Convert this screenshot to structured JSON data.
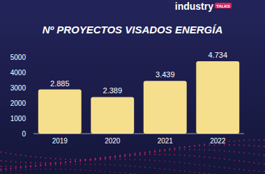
{
  "chart_data": {
    "type": "bar",
    "title": "Nº PROYECTOS VISADOS ENERGÍA",
    "categories": [
      "2019",
      "2020",
      "2021",
      "2022"
    ],
    "values": [
      2885,
      2389,
      3439,
      4734
    ],
    "value_labels": [
      "2.885",
      "2.389",
      "3.439",
      "4.734"
    ],
    "data_labels": true,
    "color": "#f6df8c",
    "ylim": [
      0,
      5000
    ],
    "yticks": [
      0,
      1000,
      2000,
      3000,
      4000,
      5000
    ],
    "grid": false,
    "annotations": [
      "industry",
      "TALKS"
    ]
  }
}
